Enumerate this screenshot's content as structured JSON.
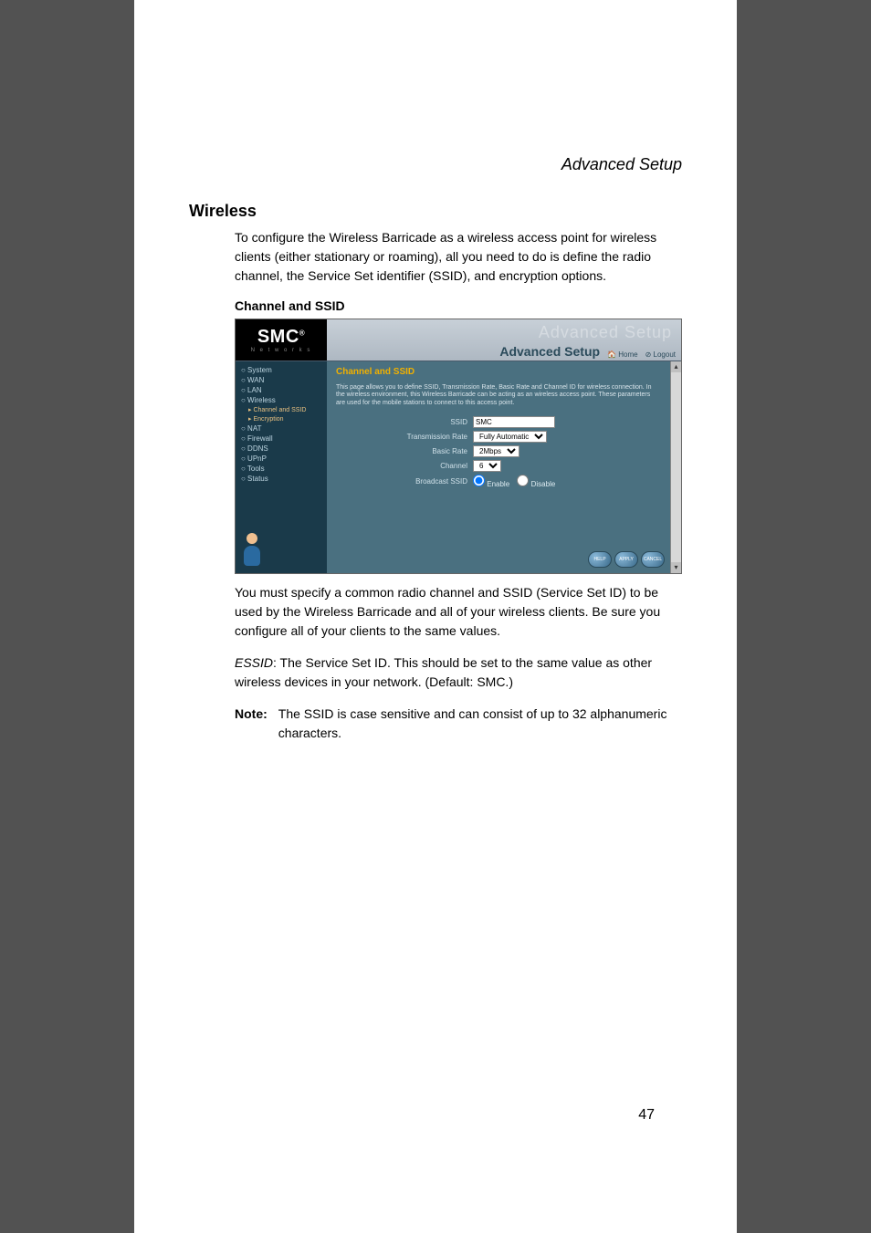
{
  "doc": {
    "running_header": "Advanced Setup",
    "section_title": "Wireless",
    "intro": "To configure the Wireless Barricade as a wireless access point for wireless clients (either stationary or roaming), all you need to do is define the radio channel, the Service Set identifier (SSID), and encryption options.",
    "subsection_title": "Channel and SSID",
    "after_screenshot": "You must specify a common radio channel and SSID (Service Set ID) to be used by the Wireless Barricade and all of your wireless clients. Be sure you configure all of your clients to the same values.",
    "essid_label": "ESSID",
    "essid_text": ": The Service Set ID. This should be set to the same value as other wireless devices in your network. (Default: SMC.)",
    "note_label": "Note:",
    "note_text": "The SSID is case sensitive and can consist of up to 32 alphanumeric characters.",
    "page_number": "47"
  },
  "screenshot": {
    "logo_text": "SMC",
    "logo_sub": "N e t w o r k s",
    "brand_ghost": "Advanced Setup",
    "brand_main": "Advanced Setup",
    "brand_home": "Home",
    "brand_logout": "Logout",
    "sidebar": {
      "items": [
        "○ System",
        "○ WAN",
        "○ LAN",
        "○ Wireless",
        "○ NAT",
        "○ Firewall",
        "○ DDNS",
        "○ UPnP",
        "○ Tools",
        "○ Status"
      ],
      "wireless_sub": [
        "▸ Channel and SSID",
        "▸ Encryption"
      ]
    },
    "panel": {
      "title": "Channel and SSID",
      "desc": "This page allows you to define SSID, Transmission Rate, Basic Rate and Channel ID for wireless connection. In the wireless environment, this Wireless Barricade can be acting as an wireless access point. These parameters are used for the mobile stations to connect to this access point.",
      "rows": {
        "ssid_label": "SSID",
        "ssid_value": "SMC",
        "tx_label": "Transmission Rate",
        "tx_value": "Fully Automatic",
        "basic_label": "Basic Rate",
        "basic_value": "2Mbps",
        "channel_label": "Channel",
        "channel_value": "6",
        "bcast_label": "Broadcast SSID",
        "bcast_enable": "Enable",
        "bcast_disable": "Disable"
      },
      "buttons": {
        "help": "HELP",
        "apply": "APPLY",
        "cancel": "CANCEL"
      }
    },
    "colors": {
      "sidebar_bg": "#1a3a4a",
      "main_bg": "#4a7080",
      "title_color": "#f0b000"
    }
  }
}
